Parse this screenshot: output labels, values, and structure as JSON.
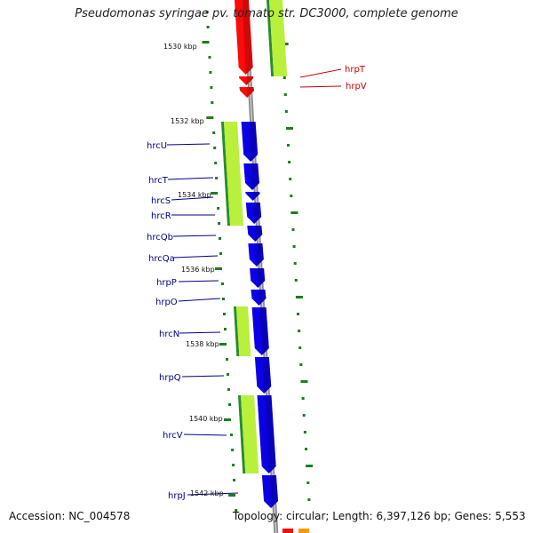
{
  "header": {
    "title": "Pseudomonas syringae pv. tomato str. DC3000, complete genome"
  },
  "footer": {
    "accession": "Accession: NC_004578",
    "summary": "Topology: circular; Length: 6,397,126 bp; Genes: 5,553"
  },
  "colors": {
    "backbone": "#8c8c8c",
    "tick": "#1e7d1e",
    "gene_blue": "#0b00e6",
    "gene_red": "#ff0a0a",
    "feature_lime": "#b8f03c",
    "feature_green": "#2a8c2a",
    "label_blue": "#00008b",
    "label_red": "#cc0000",
    "orange": "#ff9900"
  },
  "ruler": {
    "kbp_labels": [
      "1530 kbp",
      "1532 kbp",
      "1534 kbp",
      "1536 kbp",
      "1538 kbp",
      "1540 kbp",
      "1542 kbp"
    ]
  },
  "genes": {
    "red_labels": [
      "hrpT",
      "hrpV"
    ],
    "blue_labels": [
      "hrcU",
      "hrcT",
      "hrcS",
      "hrcR",
      "hrcQb",
      "hrcQa",
      "hrpP",
      "hrpO",
      "hrcN",
      "hrpQ",
      "hrcV",
      "hrpJ"
    ]
  }
}
